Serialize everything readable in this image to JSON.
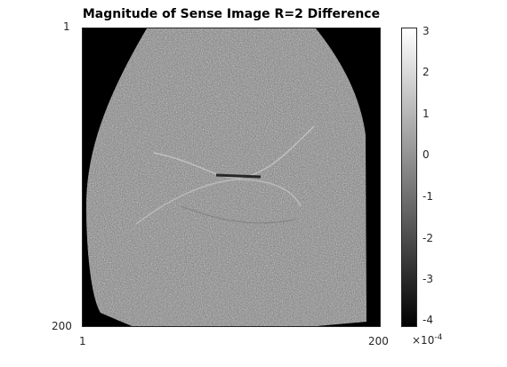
{
  "title": "Magnitude of Sense Image R=2 Difference",
  "image": {
    "description_icon": "mri-difference-image",
    "x_tick_labels": [
      "1",
      "200"
    ],
    "y_tick_labels": [
      "1",
      "200"
    ],
    "colormap": "gray"
  },
  "colorbar": {
    "tick_labels": [
      "3",
      "2",
      "1",
      "0",
      "-1",
      "-2",
      "-3",
      "-4"
    ],
    "range": [
      -4.2,
      3.1
    ],
    "exponent_base": "×10",
    "exponent_power": "-4"
  }
}
